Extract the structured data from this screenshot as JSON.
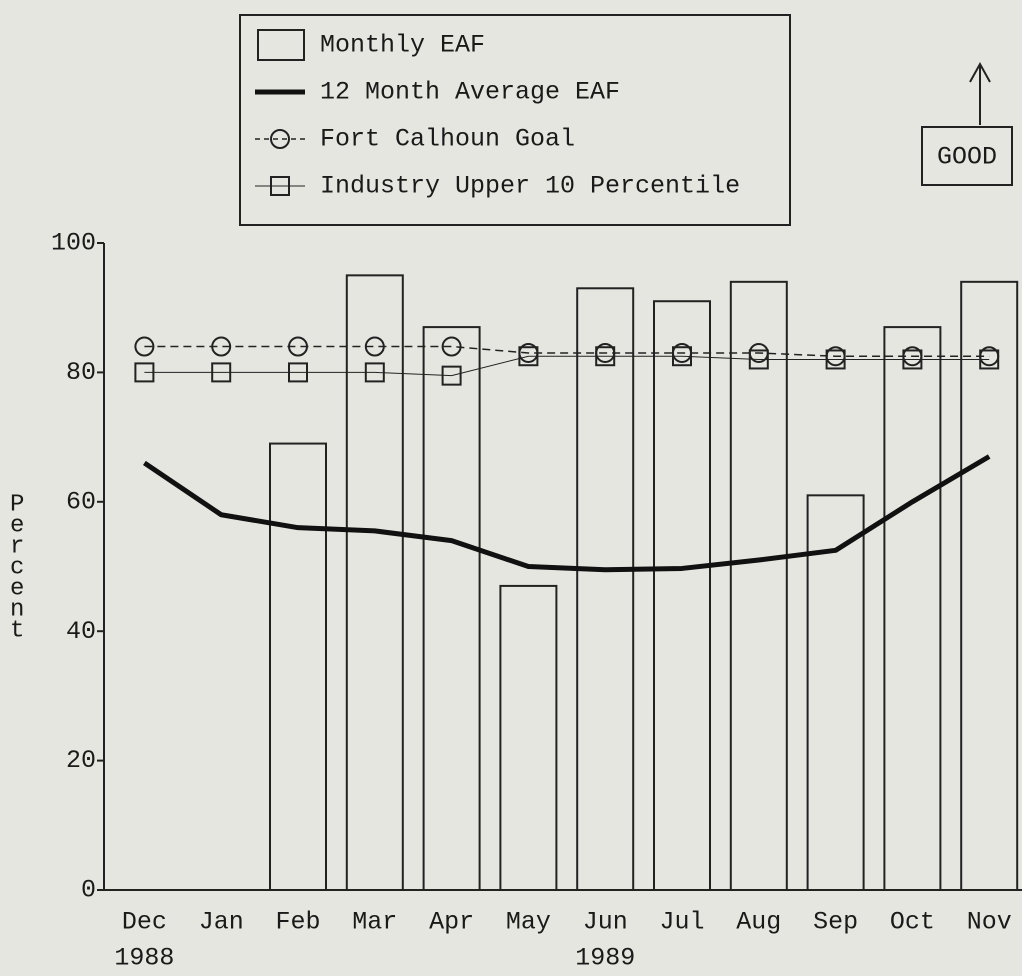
{
  "chart_data": {
    "type": "bar",
    "annotation": "GOOD",
    "y_label": "Percent",
    "categories": [
      "Dec",
      "Jan",
      "Feb",
      "Mar",
      "Apr",
      "May",
      "Jun",
      "Jul",
      "Aug",
      "Sep",
      "Oct",
      "Nov"
    ],
    "year_labels": [
      "1988",
      null,
      null,
      null,
      null,
      null,
      "1989",
      null,
      null,
      null,
      null,
      null
    ],
    "ylim": [
      0,
      100
    ],
    "yticks": [
      0,
      20,
      40,
      60,
      80,
      100
    ],
    "series": [
      {
        "name": "Monthly EAF",
        "type": "bar",
        "color": "#222222",
        "values": [
          null,
          null,
          69,
          95,
          87,
          47,
          93,
          91,
          94,
          61,
          87,
          94
        ]
      },
      {
        "name": "12 Month Average EAF",
        "type": "line",
        "color": "#111111",
        "width": 5,
        "values": [
          66,
          58,
          56,
          55.5,
          54,
          50,
          49.5,
          49.7,
          51,
          52.5,
          60,
          67
        ]
      },
      {
        "name": "Fort Calhoun Goal",
        "type": "line",
        "color": "#222222",
        "width": 1.5,
        "dash": true,
        "marker": "circle",
        "values": [
          84,
          84,
          84,
          84,
          84,
          83,
          83,
          83,
          83,
          82.5,
          82.5,
          82.5
        ]
      },
      {
        "name": "Industry Upper 10 Percentile",
        "type": "line",
        "color": "#222222",
        "width": 1,
        "marker": "square",
        "values": [
          80,
          80,
          80,
          80,
          79.5,
          82.5,
          82.5,
          82.5,
          82,
          82,
          82,
          82
        ]
      }
    ]
  }
}
